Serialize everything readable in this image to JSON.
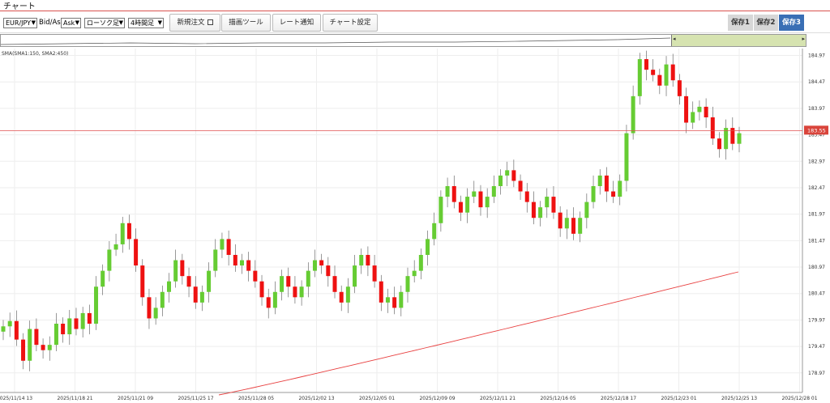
{
  "title": "チャート",
  "toolbar": {
    "pair": "EUR/JPY",
    "bidask_label": "Bid/Ask",
    "bidask_value": "Ask",
    "chart_type": "ローソク足",
    "timeframe": "4時間足",
    "new_order": "新規注文",
    "drawing_tools": "描画ツール",
    "rate_alert": "レート通知",
    "chart_settings": "チャート設定",
    "save1": "保存1",
    "save2": "保存2",
    "save3": "保存3"
  },
  "indicator_label": "SMA(SMA1:150, SMA2:450)",
  "current_price_label": "183.55",
  "chart_data": {
    "type": "candlestick",
    "pair": "EUR/JPY",
    "timeframe": "4時間足",
    "ylim": [
      178.6,
      185.1
    ],
    "y_ticks": [
      "184.97",
      "184.47",
      "183.97",
      "183.47",
      "182.97",
      "182.47",
      "181.97",
      "181.47",
      "180.97",
      "180.47",
      "179.97",
      "179.47",
      "178.97"
    ],
    "x_ticks": [
      "2025/11/14 13",
      "2025/11/18 21",
      "2025/11/21 09",
      "2025/11/25 17",
      "2025/11/28 05",
      "2025/12/02 13",
      "2025/12/05 01",
      "2025/12/09 09",
      "2025/12/11 21",
      "2025/12/16 05",
      "2025/12/18 17",
      "2025/12/23 01",
      "2025/12/25 13",
      "2025/12/28 01"
    ],
    "current_price": 183.55,
    "closes": [
      179.85,
      179.95,
      179.6,
      179.2,
      179.8,
      179.5,
      179.4,
      179.5,
      179.9,
      179.7,
      180.0,
      179.8,
      180.1,
      179.9,
      180.6,
      180.9,
      181.3,
      181.4,
      181.8,
      181.5,
      181.0,
      180.4,
      180.0,
      180.2,
      180.5,
      180.7,
      181.1,
      180.8,
      180.6,
      180.3,
      180.5,
      180.9,
      181.3,
      181.5,
      181.2,
      181.0,
      181.1,
      180.9,
      180.7,
      180.4,
      180.2,
      180.5,
      180.8,
      180.6,
      180.4,
      180.6,
      180.9,
      181.1,
      181.0,
      180.8,
      180.5,
      180.3,
      180.6,
      181.0,
      181.2,
      181.0,
      180.7,
      180.3,
      180.4,
      180.2,
      180.5,
      180.8,
      180.9,
      181.2,
      181.5,
      181.8,
      182.3,
      182.5,
      182.2,
      182.0,
      182.3,
      182.4,
      182.1,
      182.3,
      182.5,
      182.7,
      182.8,
      182.6,
      182.4,
      182.2,
      181.9,
      182.1,
      182.3,
      182.0,
      181.7,
      181.9,
      181.6,
      181.9,
      182.2,
      182.5,
      182.7,
      182.4,
      182.3,
      182.6,
      183.5,
      184.2,
      184.9,
      184.7,
      184.6,
      184.4,
      184.8,
      184.5,
      184.2,
      183.7,
      183.9,
      184.0,
      183.8,
      183.4,
      183.2,
      183.6,
      183.3,
      183.5
    ],
    "sma_start": [
      10,
      470
    ],
    "sma_end": [
      911,
      276
    ]
  }
}
